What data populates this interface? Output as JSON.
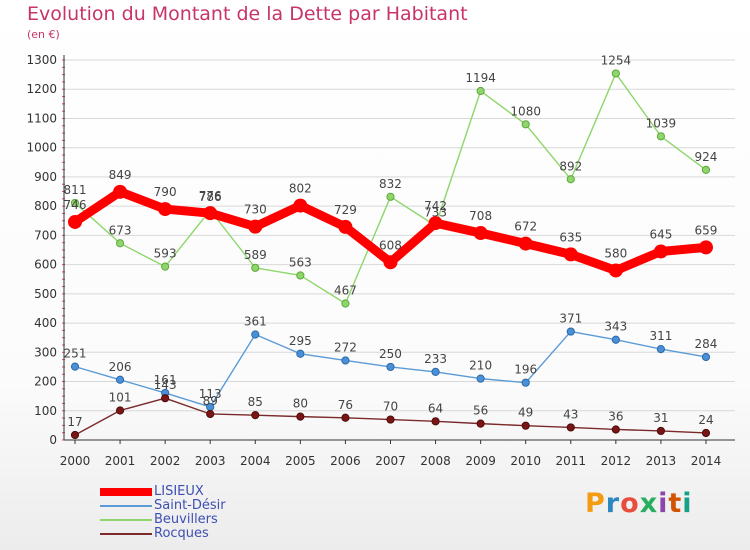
{
  "title": "Evolution du Montant de la Dette par Habitant",
  "subtitle": "(en €)",
  "logo_text": "Proxiti",
  "colors": {
    "title": "#c8336a",
    "legend_text": "#3e4fb3",
    "axis": "#333333",
    "grid": "#d8d8d8",
    "tick_minor": "#e04a74"
  },
  "chart_data": {
    "type": "line",
    "title": "Evolution du Montant de la Dette par Habitant",
    "subtitle": "(en €)",
    "x": [
      "2000",
      "2001",
      "2002",
      "2003",
      "2004",
      "2005",
      "2006",
      "2007",
      "2008",
      "2009",
      "2010",
      "2011",
      "2012",
      "2013",
      "2014"
    ],
    "ylim": [
      0,
      1300
    ],
    "yticks": [
      0,
      100,
      200,
      300,
      400,
      500,
      600,
      700,
      800,
      900,
      1000,
      1100,
      1200,
      1300
    ],
    "grid": "horizontal",
    "legend_position": "bottom-left",
    "series": [
      {
        "name": "LISIEUX",
        "color": "#ff0000",
        "values": [
          746,
          849,
          790,
          776,
          730,
          802,
          729,
          608,
          742,
          708,
          672,
          635,
          580,
          645,
          659
        ]
      },
      {
        "name": "Saint-Désir",
        "color": "#5b9bd5",
        "values": [
          251,
          206,
          161,
          113,
          361,
          295,
          272,
          250,
          233,
          210,
          196,
          371,
          343,
          311,
          284
        ]
      },
      {
        "name": "Beuvillers",
        "color": "#8ed66b",
        "values": [
          811,
          673,
          593,
          786,
          589,
          563,
          467,
          832,
          733,
          1194,
          1080,
          892,
          1254,
          1039,
          924
        ]
      },
      {
        "name": "Rocques",
        "color": "#7a2a2a",
        "values": [
          17,
          101,
          143,
          89,
          85,
          80,
          76,
          70,
          64,
          56,
          49,
          43,
          36,
          31,
          24
        ]
      }
    ]
  }
}
